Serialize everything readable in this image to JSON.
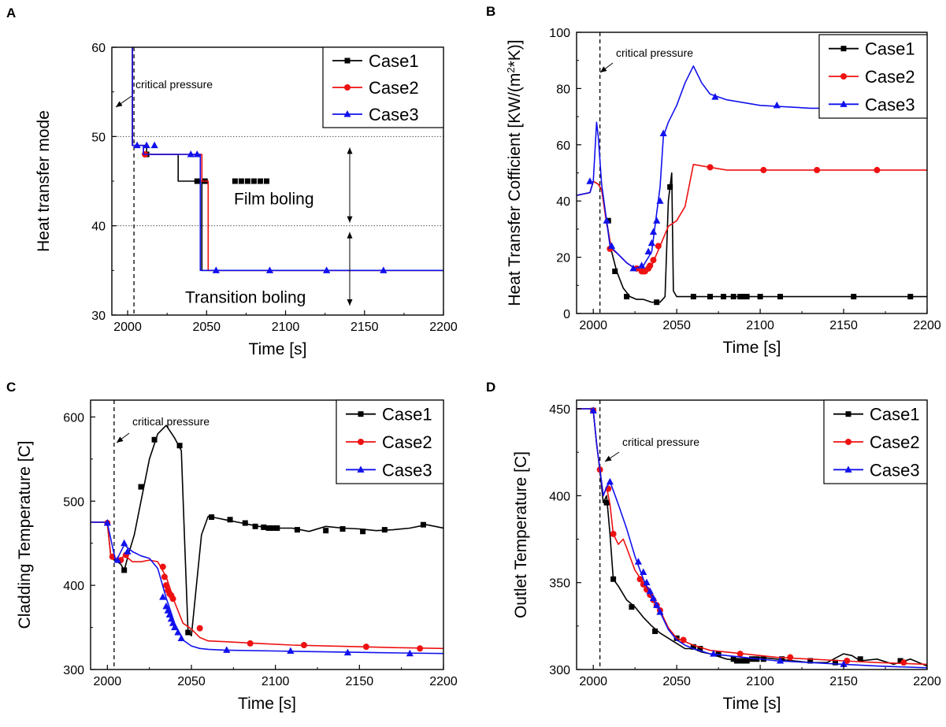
{
  "colors": {
    "case1": "#000000",
    "case2": "#ee1111",
    "case3": "#1111ee"
  },
  "chart_data": [
    {
      "panel": "A",
      "type": "line",
      "xlabel": "Time [s]",
      "ylabel": "Heat transfer mode",
      "xlim": [
        1990,
        2200
      ],
      "ylim": [
        30,
        60
      ],
      "xticks": [
        2000,
        2050,
        2100,
        2150,
        2200
      ],
      "yticks": [
        30,
        40,
        50,
        60
      ],
      "annotation": "critical pressure",
      "critical_x": 2004,
      "hlines": [
        50,
        40
      ],
      "region_labels": [
        "Film boling",
        "Transition boling"
      ],
      "series": [
        {
          "name": "Case1",
          "marker": "square",
          "x": [
            2003,
            2003,
            2012,
            2012,
            2032,
            2032,
            2047,
            2047,
            2200
          ],
          "y": [
            60,
            49,
            49,
            48,
            48,
            45,
            45,
            35,
            35
          ],
          "mx": [
            2012,
            2044,
            2049,
            2068,
            2072,
            2076,
            2080,
            2084,
            2088
          ],
          "my": [
            48,
            45,
            45,
            45,
            45,
            45,
            45,
            45,
            45
          ]
        },
        {
          "name": "Case2",
          "marker": "circle",
          "x": [
            2003,
            2003,
            2010,
            2010,
            2047,
            2047,
            2051,
            2051,
            2200
          ],
          "y": [
            60,
            49,
            49,
            48,
            48,
            45,
            45,
            35,
            35
          ],
          "mx": [
            2011
          ],
          "my": [
            48
          ]
        },
        {
          "name": "Case3",
          "marker": "triangle",
          "x": [
            2003,
            2003,
            2010,
            2010,
            2040,
            2040,
            2046,
            2046,
            2200
          ],
          "y": [
            60,
            49,
            49,
            48,
            48,
            48,
            48,
            35,
            35
          ],
          "mx": [
            2006,
            2012,
            2017,
            2040,
            2044,
            2056,
            2090,
            2126,
            2162
          ],
          "my": [
            49,
            49,
            49,
            48,
            48,
            35,
            35,
            35,
            35
          ]
        }
      ]
    },
    {
      "panel": "B",
      "type": "line",
      "xlabel": "Time [s]",
      "ylabel_parts": [
        "Heat Transfer Cofficient [KW/(m",
        "2",
        "*K)]"
      ],
      "xlim": [
        1990,
        2200
      ],
      "ylim": [
        0,
        100
      ],
      "xticks": [
        2000,
        2050,
        2100,
        2150,
        2200
      ],
      "yticks": [
        0,
        20,
        40,
        60,
        80,
        100
      ],
      "annotation": "critical pressure",
      "critical_x": 2004,
      "series": [
        {
          "name": "Case1",
          "marker": "square",
          "x": [
            1990,
            1998,
            2000,
            2003,
            2005,
            2008,
            2011,
            2014,
            2018,
            2022,
            2026,
            2030,
            2035,
            2040,
            2043,
            2045,
            2047,
            2048,
            2050,
            2060,
            2080,
            2100,
            2120,
            2140,
            2160,
            2180,
            2200
          ],
          "y": [
            42,
            43,
            47,
            46,
            44,
            33,
            22,
            15,
            9,
            6,
            5,
            5,
            4,
            4,
            6,
            40,
            50,
            8,
            6,
            6,
            6,
            6,
            6,
            6,
            6,
            6,
            6
          ],
          "mx": [
            2009,
            2013,
            2020,
            2038,
            2046,
            2060,
            2070,
            2078,
            2084,
            2088,
            2090,
            2092,
            2100,
            2112,
            2156,
            2190
          ],
          "my": [
            33,
            15,
            6,
            4,
            45,
            6,
            6,
            6,
            6,
            6,
            6,
            6,
            6,
            6,
            6,
            6
          ]
        },
        {
          "name": "Case2",
          "marker": "circle",
          "x": [
            1990,
            1998,
            2000,
            2003,
            2005,
            2008,
            2011,
            2015,
            2020,
            2025,
            2030,
            2035,
            2040,
            2045,
            2050,
            2055,
            2060,
            2070,
            2080,
            2100,
            2130,
            2160,
            2200
          ],
          "y": [
            42,
            43,
            47,
            46,
            44,
            32,
            23,
            21,
            18,
            16,
            15,
            17,
            24,
            31,
            33,
            38,
            53,
            52,
            51,
            51,
            51,
            51,
            51
          ],
          "mx": [
            2010,
            2026,
            2029,
            2030,
            2031,
            2033,
            2034,
            2036,
            2039,
            2070,
            2102,
            2134,
            2170
          ],
          "my": [
            23,
            16,
            15,
            15,
            15,
            16,
            17,
            19,
            24,
            52,
            51,
            51,
            51
          ]
        },
        {
          "name": "Case3",
          "marker": "triangle",
          "x": [
            1990,
            1998,
            2000,
            2002,
            2003,
            2005,
            2008,
            2010,
            2015,
            2020,
            2025,
            2030,
            2035,
            2040,
            2042,
            2045,
            2050,
            2055,
            2060,
            2065,
            2070,
            2080,
            2100,
            2130,
            2160,
            2200
          ],
          "y": [
            42,
            43,
            47,
            68,
            63,
            46,
            33,
            24,
            21,
            18,
            16,
            17,
            22,
            45,
            63,
            68,
            74,
            82,
            88,
            82,
            78,
            76,
            74,
            73,
            73,
            73
          ],
          "mx": [
            1998,
            2008,
            2011,
            2024,
            2029,
            2033,
            2035,
            2036,
            2038,
            2040,
            2042,
            2073,
            2110
          ],
          "my": [
            47,
            33,
            24,
            16,
            17,
            22,
            25,
            29,
            33,
            40,
            64,
            77,
            74
          ]
        }
      ]
    },
    {
      "panel": "C",
      "type": "line",
      "xlabel": "Time [s]",
      "ylabel": "Cladding Temperature [C]",
      "xlim": [
        1990,
        2200
      ],
      "ylim": [
        300,
        620
      ],
      "xticks": [
        2000,
        2050,
        2100,
        2150,
        2200
      ],
      "yticks": [
        300,
        400,
        500,
        600
      ],
      "annotation": "critical pressure",
      "critical_x": 2004,
      "series": [
        {
          "name": "Case1",
          "marker": "square",
          "x": [
            1990,
            1998,
            2000,
            2002,
            2004,
            2006,
            2008,
            2010,
            2013,
            2016,
            2020,
            2025,
            2030,
            2035,
            2040,
            2044,
            2046,
            2048,
            2050,
            2053,
            2056,
            2060,
            2065,
            2070,
            2080,
            2090,
            2100,
            2110,
            2120,
            2130,
            2140,
            2150,
            2160,
            2170,
            2180,
            2190,
            2200
          ],
          "y": [
            475,
            475,
            474,
            435,
            430,
            428,
            425,
            418,
            440,
            460,
            500,
            550,
            580,
            590,
            575,
            560,
            450,
            345,
            340,
            400,
            460,
            482,
            480,
            478,
            474,
            470,
            468,
            468,
            464,
            470,
            468,
            467,
            465,
            466,
            468,
            472,
            468
          ],
          "mx": [
            2010,
            2020,
            2028,
            2043,
            2048,
            2062,
            2073,
            2082,
            2088,
            2093,
            2096,
            2098,
            2101,
            2113,
            2130,
            2140,
            2152,
            2165,
            2188
          ],
          "my": [
            418,
            517,
            573,
            566,
            344,
            481,
            478,
            474,
            470,
            469,
            468,
            468,
            468,
            466,
            465,
            467,
            464,
            466,
            472
          ]
        },
        {
          "name": "Case2",
          "marker": "circle",
          "x": [
            1990,
            1998,
            2000,
            2002,
            2005,
            2008,
            2010,
            2015,
            2020,
            2025,
            2030,
            2035,
            2040,
            2045,
            2050,
            2055,
            2060,
            2070,
            2090,
            2110,
            2130,
            2150,
            2170,
            2200
          ],
          "y": [
            475,
            475,
            474,
            435,
            432,
            430,
            436,
            428,
            428,
            430,
            428,
            410,
            380,
            355,
            348,
            338,
            334,
            333,
            331,
            329,
            328,
            327,
            326,
            325
          ],
          "mx": [
            2000,
            2003,
            2008,
            2011,
            2033,
            2034,
            2035,
            2036,
            2037,
            2038,
            2039,
            2055,
            2085,
            2117,
            2154,
            2186
          ],
          "my": [
            474,
            434,
            430,
            436,
            422,
            410,
            400,
            394,
            390,
            388,
            384,
            349,
            331,
            329,
            327,
            325
          ]
        },
        {
          "name": "Case3",
          "marker": "triangle",
          "x": [
            1990,
            1998,
            2000,
            2005,
            2010,
            2015,
            2020,
            2025,
            2030,
            2035,
            2040,
            2045,
            2050,
            2055,
            2060,
            2070,
            2100,
            2130,
            2160,
            2200
          ],
          "y": [
            475,
            475,
            474,
            428,
            448,
            440,
            435,
            432,
            420,
            385,
            355,
            335,
            328,
            325,
            324,
            323,
            322,
            321,
            320,
            319
          ],
          "mx": [
            2000,
            2006,
            2010,
            2012,
            2033,
            2035,
            2036,
            2037,
            2038,
            2039,
            2040,
            2042,
            2044,
            2071,
            2109,
            2143,
            2180
          ],
          "my": [
            474,
            430,
            450,
            440,
            386,
            375,
            370,
            365,
            360,
            355,
            350,
            344,
            337,
            323,
            322,
            320,
            319
          ]
        }
      ]
    },
    {
      "panel": "D",
      "type": "line",
      "xlabel": "Time [s]",
      "ylabel": "Outlet Temperature [C]",
      "xlim": [
        1990,
        2200
      ],
      "ylim": [
        300,
        455
      ],
      "xticks": [
        2000,
        2050,
        2100,
        2150,
        2200
      ],
      "yticks": [
        300,
        350,
        400,
        450
      ],
      "annotation": "critical pressure",
      "critical_x": 2004,
      "series": [
        {
          "name": "Case1",
          "marker": "square",
          "x": [
            1990,
            1995,
            1998,
            2000,
            2002,
            2004,
            2006,
            2008,
            2010,
            2012,
            2015,
            2020,
            2025,
            2030,
            2035,
            2040,
            2045,
            2050,
            2055,
            2060,
            2065,
            2070,
            2080,
            2090,
            2100,
            2110,
            2120,
            2130,
            2140,
            2150,
            2155,
            2160,
            2170,
            2180,
            2190,
            2200
          ],
          "y": [
            450,
            450,
            450,
            449,
            430,
            414,
            396,
            400,
            378,
            352,
            348,
            340,
            336,
            330,
            325,
            321,
            318,
            315,
            312,
            312,
            310,
            309,
            306,
            305,
            307,
            306,
            305,
            304,
            304,
            309,
            308,
            305,
            306,
            303,
            306,
            302
          ],
          "mx": [
            2000,
            2008,
            2012,
            2023,
            2037,
            2050,
            2060,
            2064,
            2075,
            2084,
            2086,
            2088,
            2090,
            2092,
            2095,
            2098,
            2102,
            2113,
            2130,
            2145,
            2160,
            2184
          ],
          "my": [
            449,
            396,
            352,
            336,
            322,
            318,
            313,
            312,
            309,
            306,
            305,
            305,
            305,
            305,
            306,
            306,
            306,
            306,
            305,
            304,
            306,
            305
          ]
        },
        {
          "name": "Case2",
          "marker": "circle",
          "x": [
            1990,
            1995,
            1998,
            2000,
            2002,
            2004,
            2006,
            2008,
            2010,
            2012,
            2015,
            2018,
            2020,
            2025,
            2030,
            2035,
            2040,
            2045,
            2050,
            2060,
            2070,
            2090,
            2110,
            2130,
            2150,
            2170,
            2200
          ],
          "y": [
            450,
            450,
            450,
            449,
            430,
            415,
            400,
            405,
            395,
            378,
            372,
            375,
            370,
            357,
            350,
            342,
            334,
            324,
            318,
            314,
            311,
            309,
            307,
            306,
            305,
            304,
            303
          ],
          "mx": [
            2000,
            2004,
            2009,
            2012,
            2028,
            2030,
            2032,
            2034,
            2036,
            2038,
            2040,
            2054,
            2088,
            2118,
            2152,
            2186
          ],
          "my": [
            449,
            415,
            404,
            378,
            352,
            349,
            346,
            343,
            340,
            337,
            334,
            317,
            309,
            307,
            305,
            304
          ]
        },
        {
          "name": "Case3",
          "marker": "triangle",
          "x": [
            1990,
            1995,
            1998,
            2000,
            2002,
            2004,
            2006,
            2008,
            2010,
            2012,
            2015,
            2020,
            2025,
            2030,
            2035,
            2040,
            2045,
            2050,
            2055,
            2060,
            2070,
            2090,
            2110,
            2130,
            2150,
            2170,
            2200
          ],
          "y": [
            450,
            450,
            450,
            449,
            430,
            415,
            400,
            405,
            408,
            403,
            395,
            381,
            365,
            352,
            342,
            333,
            323,
            317,
            314,
            312,
            309,
            307,
            305,
            304,
            303,
            302,
            301
          ],
          "mx": [
            2000,
            2010,
            2027,
            2030,
            2032,
            2034,
            2036,
            2038,
            2040,
            2072,
            2112,
            2150
          ],
          "my": [
            449,
            408,
            362,
            356,
            350,
            345,
            341,
            337,
            333,
            309,
            305,
            303
          ]
        }
      ]
    }
  ]
}
